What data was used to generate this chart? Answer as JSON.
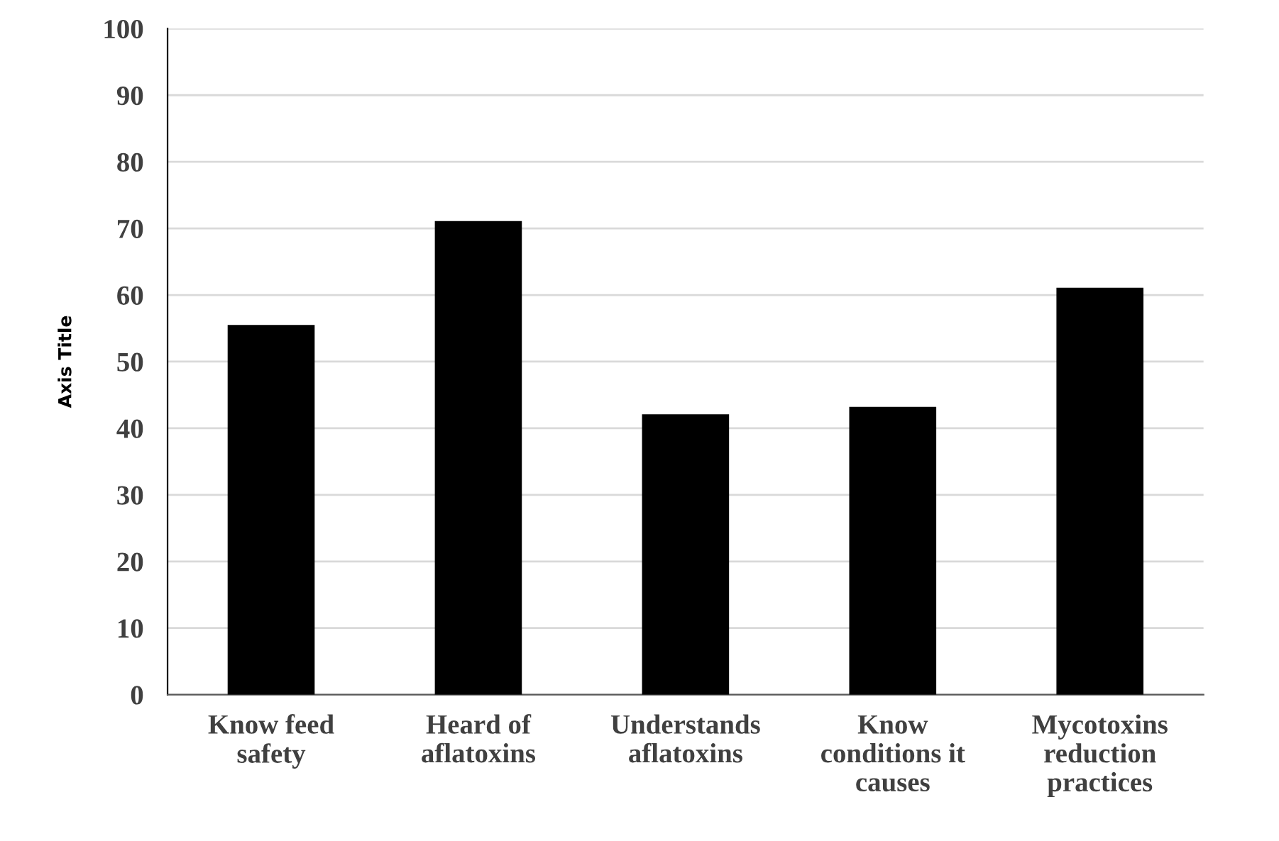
{
  "chart_data": {
    "type": "bar",
    "ylabel": "Axis Title",
    "categories": [
      "Know feed\nsafety",
      "Heard of\naflatoxins",
      "Understands\naflatoxins",
      "Know\nconditions it\ncauses",
      "Mycotoxins\nreduction\npractices"
    ],
    "values": [
      55.5,
      71.1,
      42.1,
      43.2,
      61.1
    ],
    "color": "#000000",
    "ylim": [
      0,
      100
    ],
    "yticks": [
      0,
      10,
      20,
      30,
      40,
      50,
      60,
      70,
      80,
      90,
      100
    ],
    "grid": "y",
    "legend": false
  }
}
